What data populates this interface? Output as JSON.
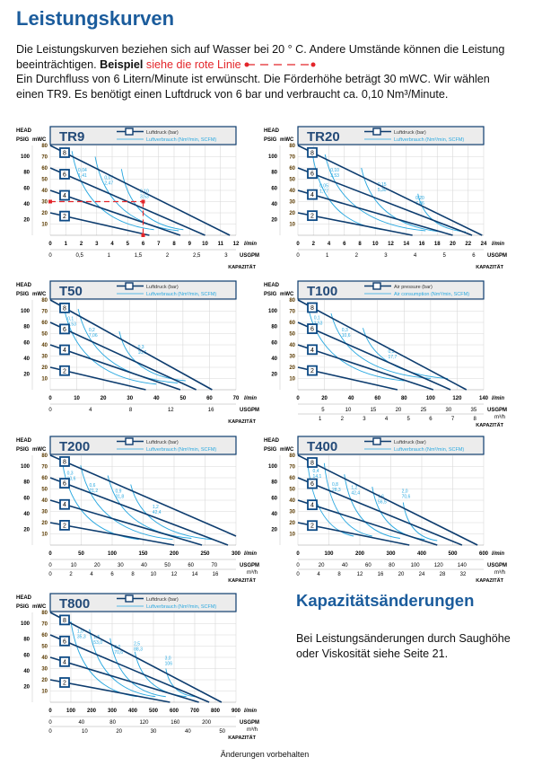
{
  "page": {
    "title": "Leistungskurven",
    "intro_line1": "Die Leistungskurven beziehen sich auf Wasser bei 20 ° C. Andere Umstände können die Leistung",
    "intro_line2_a": "beeinträchtigen.",
    "intro_line2_bold": "Beispiel",
    "intro_line2_red": "siehe die rote Linie",
    "intro_line3": "Ein Durchfluss von 6 Litern/Minute ist erwünscht. Die Förderhöhe beträgt 30 mWC. Wir wählen",
    "intro_line4": "einen TR9. Es benötigt einen Luftdruck von 6 bar und verbraucht ca. 0,10 Nm³/Minute.",
    "side_title": "Kapazitätsänderungen",
    "side_text": "Bei Leistungsänderungen durch Saughöhe oder Viskosität siehe Seite 21.",
    "footer": "Änderungen vorbehalten"
  },
  "colors": {
    "heading": "#1b5c9c",
    "pressure_line": "#0d3c6e",
    "consumption_line": "#29a8e0",
    "example_line": "#e3262b",
    "title_box_bg": "#ececec"
  },
  "axis_common": {
    "head_label": "HEAD",
    "psig_label": "PSIG",
    "mwc_label": "mWC",
    "mwc_ticks": [
      10,
      20,
      30,
      40,
      50,
      60,
      70,
      80
    ],
    "psig_ticks": [
      20,
      40,
      60,
      80,
      100
    ],
    "flow_unit": "l/min",
    "usgpm_unit": "USGPM",
    "m3h_unit": "m³/h",
    "capacity_label": "KAPAZITÄT",
    "pressure_levels": [
      "2",
      "4",
      "6",
      "8"
    ]
  },
  "chart_data": [
    {
      "type": "line",
      "title": "TR9",
      "legend": [
        "Luftdruck (bar)",
        "Luftverbrauch (Nm³/min, SCFM)"
      ],
      "xlim": [
        0,
        12
      ],
      "x_ticks": [
        0,
        1,
        2,
        3,
        4,
        5,
        6,
        7,
        8,
        9,
        10,
        11,
        12
      ],
      "usgpm_ticks": [
        "0",
        "0,5",
        "1",
        "1,5",
        "2",
        "2,5",
        "3"
      ],
      "usgpm_values": [
        0,
        0.5,
        1,
        1.5,
        2,
        2.5,
        3
      ],
      "m3h_ticks": [],
      "m3h_values": [],
      "pressure_lines": [
        {
          "bar": 2,
          "x_at_zero_head": 6.4
        },
        {
          "bar": 4,
          "x_at_zero_head": 8.4
        },
        {
          "bar": 6,
          "x_at_zero_head": 10
        },
        {
          "bar": 8,
          "x_at_zero_head": 11.6
        }
      ],
      "consumption": [
        {
          "label": [
            "0,04",
            "1,41"
          ],
          "from": [
            1.4,
            75
          ],
          "to": [
            6.7,
            5
          ],
          "label_at": [
            1.8,
            57
          ]
        },
        {
          "label": [
            "0,07",
            "2,47"
          ],
          "from": [
            2.9,
            70
          ],
          "to": [
            8.3,
            4
          ],
          "label_at": [
            3.5,
            50
          ]
        },
        {
          "label": [
            "0,10",
            "3,53"
          ],
          "from": [
            4.6,
            59
          ],
          "to": [
            8.6,
            5
          ],
          "label_at": [
            5.8,
            38
          ]
        }
      ],
      "example": {
        "flow": 6,
        "head": 30
      }
    },
    {
      "type": "line",
      "title": "TR20",
      "legend": [
        "Luftdruck (bar)",
        "Luftverbrauch (Nm³/min, SCFM)"
      ],
      "xlim": [
        0,
        24
      ],
      "x_ticks": [
        0,
        2,
        4,
        6,
        8,
        10,
        12,
        14,
        16,
        18,
        20,
        22,
        24
      ],
      "usgpm_ticks": [
        "0",
        "1",
        "2",
        "3",
        "4",
        "5",
        "6"
      ],
      "usgpm_values": [
        0,
        1,
        2,
        3,
        4,
        5,
        6
      ],
      "m3h_ticks": [],
      "m3h_values": [],
      "pressure_lines": [
        {
          "bar": 2,
          "x_at_zero_head": 14.8
        },
        {
          "bar": 4,
          "x_at_zero_head": 20
        },
        {
          "bar": 6,
          "x_at_zero_head": 22.5
        },
        {
          "bar": 8,
          "x_at_zero_head": 23.8
        }
      ],
      "consumption": [
        {
          "label": [
            "0,05",
            "1,77"
          ],
          "from": [
            1.9,
            72
          ],
          "to": [
            10.9,
            5
          ],
          "label_at": [
            2.8,
            43
          ]
        },
        {
          "label": [
            "0,10",
            "3,53"
          ],
          "from": [
            3.5,
            72
          ],
          "to": [
            16.5,
            4
          ],
          "label_at": [
            4.2,
            57
          ]
        },
        {
          "label": [
            "0,15",
            "5,30"
          ],
          "from": [
            8.2,
            60
          ],
          "to": [
            18.7,
            3
          ],
          "label_at": [
            10.3,
            44
          ]
        },
        {
          "label": [
            "0,20",
            "7,06"
          ],
          "from": [
            15.5,
            37
          ],
          "to": [
            21.7,
            3
          ],
          "label_at": [
            15.2,
            32
          ]
        }
      ]
    },
    {
      "type": "line",
      "title": "T50",
      "legend": [
        "Luftdruck (bar)",
        "Luftverbrauch (Nm³/min, SCFM)"
      ],
      "xlim": [
        0,
        70
      ],
      "x_ticks": [
        0,
        10,
        20,
        30,
        40,
        50,
        60,
        70
      ],
      "usgpm_ticks": [
        "0",
        "4",
        "8",
        "12",
        "16"
      ],
      "usgpm_values": [
        0,
        4,
        8,
        12,
        16
      ],
      "m3h_ticks": [],
      "m3h_values": [],
      "pressure_lines": [
        {
          "bar": 2,
          "x_at_zero_head": 36
        },
        {
          "bar": 4,
          "x_at_zero_head": 49
        },
        {
          "bar": 6,
          "x_at_zero_head": 55
        },
        {
          "bar": 8,
          "x_at_zero_head": 61
        }
      ],
      "consumption": [
        {
          "label": [
            "0,1",
            "3,53"
          ],
          "from": [
            5.3,
            72
          ],
          "to": [
            40,
            5
          ],
          "label_at": [
            6.5,
            62
          ]
        },
        {
          "label": [
            "0,2",
            "7,06"
          ],
          "from": [
            10.5,
            72
          ],
          "to": [
            48,
            6
          ],
          "label_at": [
            14.5,
            52
          ]
        },
        {
          "label": [
            "0,3",
            "10,6"
          ],
          "from": [
            26,
            52
          ],
          "to": [
            51,
            8
          ],
          "label_at": [
            33,
            37
          ]
        }
      ]
    },
    {
      "type": "line",
      "title": "T100",
      "legend": [
        "Air pressure (bar)",
        "Air consumption (Nm³/min, SCFM)"
      ],
      "xlim": [
        0,
        140
      ],
      "x_ticks": [
        0,
        20,
        40,
        60,
        80,
        100,
        120,
        140
      ],
      "usgpm_ticks": [
        "5",
        "10",
        "15",
        "20",
        "25",
        "30",
        "35"
      ],
      "usgpm_values": [
        5,
        10,
        15,
        20,
        25,
        30,
        35
      ],
      "m3h_ticks": [
        "1",
        "2",
        "3",
        "4",
        "5",
        "6",
        "7",
        "8"
      ],
      "m3h_values": [
        1,
        2,
        3,
        4,
        5,
        6,
        7,
        8
      ],
      "pressure_lines": [
        {
          "bar": 2,
          "x_at_zero_head": 75
        },
        {
          "bar": 4,
          "x_at_zero_head": 102
        },
        {
          "bar": 6,
          "x_at_zero_head": 115
        },
        {
          "bar": 8,
          "x_at_zero_head": 127
        }
      ],
      "consumption": [
        {
          "label": [
            "0,1",
            "3,53"
          ],
          "from": [
            8,
            72
          ],
          "to": [
            80,
            8
          ],
          "label_at": [
            12,
            63
          ]
        },
        {
          "label": [
            "0,3",
            "10,6"
          ],
          "from": [
            25,
            68
          ],
          "to": [
            100,
            10
          ],
          "label_at": [
            33,
            52
          ]
        },
        {
          "label": [
            "0,5",
            "17,7"
          ],
          "from": [
            49,
            55
          ],
          "to": [
            113,
            10
          ],
          "label_at": [
            68,
            33
          ]
        }
      ]
    },
    {
      "type": "line",
      "title": "T200",
      "legend": [
        "Luftdruck (bar)",
        "Luftverbrauch (Nm³/min, SCFM)"
      ],
      "xlim": [
        0,
        300
      ],
      "x_ticks": [
        0,
        50,
        100,
        150,
        200,
        250,
        300
      ],
      "usgpm_ticks": [
        "0",
        "10",
        "20",
        "30",
        "40",
        "50",
        "60",
        "70"
      ],
      "usgpm_values": [
        0,
        10,
        20,
        30,
        40,
        50,
        60,
        70
      ],
      "m3h_ticks": [
        "0",
        "2",
        "4",
        "6",
        "8",
        "10",
        "12",
        "14",
        "16"
      ],
      "m3h_values": [
        0,
        2,
        4,
        6,
        8,
        10,
        12,
        14,
        16
      ],
      "pressure_lines": [
        {
          "bar": 2,
          "x_at_zero_head": 200
        },
        {
          "bar": 4,
          "x_at_zero_head": 245
        },
        {
          "bar": 6,
          "x_at_zero_head": 287
        },
        {
          "bar": 8,
          "x_at_zero_head": 300,
          "head_at_end": 8
        }
      ],
      "consumption": [
        {
          "label": [
            "0,3",
            "10,6"
          ],
          "from": [
            20,
            72
          ],
          "to": [
            143,
            5
          ],
          "label_at": [
            27,
            63
          ]
        },
        {
          "label": [
            "0,6",
            "21,2"
          ],
          "from": [
            49,
            71
          ],
          "to": [
            198,
            5
          ],
          "label_at": [
            63,
            52
          ]
        },
        {
          "label": [
            "0,9",
            "31,8"
          ],
          "from": [
            93,
            62
          ],
          "to": [
            228,
            6
          ],
          "label_at": [
            105,
            47
          ]
        },
        {
          "label": [
            "1,2",
            "42,4"
          ],
          "from": [
            130,
            54
          ],
          "to": [
            262,
            5
          ],
          "label_at": [
            165,
            33
          ]
        }
      ]
    },
    {
      "type": "line",
      "title": "T400",
      "legend": [
        "Luftdruck (bar)",
        "Luftverbrauch (Nm³/min, SCFM)"
      ],
      "xlim": [
        0,
        600
      ],
      "x_ticks": [
        0,
        100,
        200,
        300,
        400,
        500,
        600
      ],
      "usgpm_ticks": [
        "0",
        "20",
        "40",
        "60",
        "80",
        "100",
        "120",
        "140"
      ],
      "usgpm_values": [
        0,
        20,
        40,
        60,
        80,
        100,
        120,
        140
      ],
      "m3h_ticks": [
        "0",
        "4",
        "8",
        "12",
        "16",
        "20",
        "24",
        "28",
        "32"
      ],
      "m3h_values": [
        0,
        4,
        8,
        12,
        16,
        20,
        24,
        28,
        32
      ],
      "pressure_lines": [
        {
          "bar": 2,
          "x_at_zero_head": 360
        },
        {
          "bar": 4,
          "x_at_zero_head": 450
        },
        {
          "bar": 6,
          "x_at_zero_head": 530
        },
        {
          "bar": 8,
          "x_at_zero_head": 580
        }
      ],
      "consumption": [
        {
          "label": [
            "0,4",
            "14,1"
          ],
          "from": [
            30,
            76
          ],
          "to": [
            180,
            8
          ],
          "label_at": [
            48,
            65
          ]
        },
        {
          "label": [
            "0,8",
            "28,3"
          ],
          "from": [
            85,
            73
          ],
          "to": [
            240,
            8
          ],
          "label_at": [
            110,
            53
          ]
        },
        {
          "label": [
            "1,2",
            "42,4"
          ],
          "from": [
            150,
            63
          ],
          "to": [
            330,
            6
          ],
          "label_at": [
            172,
            50
          ]
        },
        {
          "label": [
            "1,6",
            "56,5"
          ],
          "from": [
            240,
            52
          ],
          "to": [
            410,
            5
          ],
          "label_at": [
            258,
            42
          ]
        },
        {
          "label": [
            "2,0",
            "70,6"
          ],
          "from": [
            340,
            38
          ],
          "to": [
            450,
            4
          ],
          "label_at": [
            335,
            47
          ]
        }
      ]
    },
    {
      "type": "line",
      "title": "T800",
      "legend": [
        "Luftdruck (bar)",
        "Luftverbrauch (Nm³/min, SCFM)"
      ],
      "xlim": [
        0,
        900
      ],
      "x_ticks": [
        0,
        100,
        200,
        300,
        400,
        500,
        600,
        700,
        800,
        900
      ],
      "usgpm_ticks": [
        "0",
        "40",
        "80",
        "120",
        "160",
        "200"
      ],
      "usgpm_values": [
        0,
        40,
        80,
        120,
        160,
        200
      ],
      "m3h_ticks": [
        "0",
        "10",
        "20",
        "30",
        "40",
        "50"
      ],
      "m3h_values": [
        0,
        10,
        20,
        30,
        40,
        50
      ],
      "pressure_lines": [
        {
          "bar": 2,
          "x_at_zero_head": 580
        },
        {
          "bar": 4,
          "x_at_zero_head": 720
        },
        {
          "bar": 6,
          "x_at_zero_head": 770
        },
        {
          "bar": 8,
          "x_at_zero_head": 830
        }
      ],
      "consumption": [
        {
          "label": [
            "1,0",
            "35,3"
          ],
          "from": [
            100,
            72
          ],
          "to": [
            420,
            5
          ],
          "label_at": [
            130,
            62
          ]
        },
        {
          "label": [
            "1,5",
            "53,0"
          ],
          "from": [
            190,
            65
          ],
          "to": [
            510,
            5
          ],
          "label_at": [
            210,
            57
          ]
        },
        {
          "label": [
            "2,0",
            "70,6"
          ],
          "from": [
            290,
            57
          ],
          "to": [
            560,
            5
          ],
          "label_at": [
            310,
            48
          ]
        },
        {
          "label": [
            "2,5",
            "88,3"
          ],
          "from": [
            410,
            45
          ],
          "to": [
            660,
            5
          ],
          "label_at": [
            405,
            51
          ]
        },
        {
          "label": [
            "3,0",
            "106"
          ],
          "from": [
            560,
            30
          ],
          "to": [
            700,
            5
          ],
          "label_at": [
            555,
            38
          ]
        }
      ]
    }
  ]
}
